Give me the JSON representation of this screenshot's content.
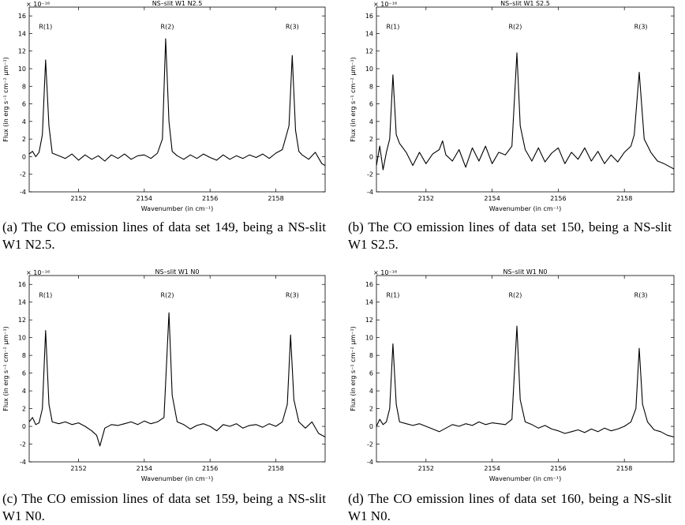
{
  "chart_data": [
    {
      "type": "line",
      "title": "NS–slit W1 N2.5",
      "xlabel": "Wavenumber (in cm⁻¹)",
      "ylabel": "Flux (in erg s⁻¹ cm⁻² μm⁻¹)",
      "exponent": "× 10⁻¹⁶",
      "xlim": [
        2150.5,
        2159.5
      ],
      "ylim": [
        -4,
        17
      ],
      "xticks": [
        2152,
        2154,
        2156,
        2158
      ],
      "yticks": [
        -4,
        -2,
        0,
        2,
        4,
        6,
        8,
        10,
        12,
        14,
        16
      ],
      "annotations": [
        {
          "text": "R(1)",
          "x": 2151.0,
          "y": 14.8
        },
        {
          "text": "R(2)",
          "x": 2154.7,
          "y": 14.8
        },
        {
          "text": "R(3)",
          "x": 2158.5,
          "y": 14.8
        }
      ],
      "series": [
        {
          "x": [
            2150.5,
            2150.6,
            2150.7,
            2150.8,
            2150.9,
            2151.0,
            2151.1,
            2151.2,
            2151.4,
            2151.6,
            2151.8,
            2152.0,
            2152.2,
            2152.4,
            2152.6,
            2152.8,
            2153.0,
            2153.2,
            2153.4,
            2153.6,
            2153.8,
            2154.0,
            2154.2,
            2154.4,
            2154.55,
            2154.65,
            2154.75,
            2154.85,
            2155.0,
            2155.2,
            2155.4,
            2155.6,
            2155.8,
            2156.0,
            2156.2,
            2156.4,
            2156.6,
            2156.8,
            2157.0,
            2157.2,
            2157.4,
            2157.6,
            2157.8,
            2158.0,
            2158.2,
            2158.4,
            2158.5,
            2158.6,
            2158.7,
            2158.8,
            2159.0,
            2159.2,
            2159.4,
            2159.5
          ],
          "y": [
            0.3,
            0.6,
            0.0,
            0.5,
            2.5,
            11.0,
            3.5,
            0.4,
            0.1,
            -0.2,
            0.3,
            -0.4,
            0.2,
            -0.3,
            0.1,
            -0.5,
            0.2,
            -0.2,
            0.3,
            -0.3,
            0.1,
            0.2,
            -0.2,
            0.4,
            2.0,
            13.4,
            4.0,
            0.6,
            0.1,
            -0.3,
            0.2,
            -0.2,
            0.3,
            -0.1,
            -0.4,
            0.2,
            -0.3,
            0.1,
            -0.2,
            0.2,
            -0.1,
            0.3,
            -0.2,
            0.4,
            0.8,
            3.5,
            11.5,
            3.0,
            0.6,
            0.2,
            -0.3,
            0.5,
            -0.8,
            -1.0
          ]
        }
      ]
    },
    {
      "type": "line",
      "title": "NS–slit W1 S2.5",
      "xlabel": "Wavenumber (in cm⁻¹)",
      "ylabel": "Flux (in erg s⁻¹ cm⁻² μm⁻¹)",
      "exponent": "× 10⁻¹⁶",
      "xlim": [
        2150.5,
        2159.5
      ],
      "ylim": [
        -4,
        17
      ],
      "xticks": [
        2152,
        2154,
        2156,
        2158
      ],
      "yticks": [
        -4,
        -2,
        0,
        2,
        4,
        6,
        8,
        10,
        12,
        14,
        16
      ],
      "annotations": [
        {
          "text": "R(1)",
          "x": 2151.0,
          "y": 14.8
        },
        {
          "text": "R(2)",
          "x": 2154.7,
          "y": 14.8
        },
        {
          "text": "R(3)",
          "x": 2158.5,
          "y": 14.8
        }
      ],
      "series": [
        {
          "x": [
            2150.5,
            2150.6,
            2150.7,
            2150.8,
            2150.9,
            2151.0,
            2151.1,
            2151.2,
            2151.4,
            2151.6,
            2151.8,
            2152.0,
            2152.2,
            2152.4,
            2152.5,
            2152.6,
            2152.8,
            2153.0,
            2153.2,
            2153.4,
            2153.6,
            2153.8,
            2154.0,
            2154.2,
            2154.4,
            2154.6,
            2154.75,
            2154.85,
            2155.0,
            2155.2,
            2155.4,
            2155.6,
            2155.8,
            2156.0,
            2156.2,
            2156.4,
            2156.6,
            2156.8,
            2157.0,
            2157.2,
            2157.4,
            2157.6,
            2157.8,
            2158.0,
            2158.2,
            2158.3,
            2158.45,
            2158.6,
            2158.8,
            2159.0,
            2159.2,
            2159.4,
            2159.5
          ],
          "y": [
            -1.0,
            1.2,
            -1.5,
            0.5,
            2.0,
            9.3,
            2.5,
            1.5,
            0.5,
            -1.0,
            0.5,
            -0.8,
            0.3,
            0.8,
            1.8,
            0.2,
            -0.5,
            0.8,
            -1.2,
            1.0,
            -0.5,
            1.2,
            -0.8,
            0.5,
            0.2,
            1.2,
            11.8,
            3.5,
            0.8,
            -0.5,
            1.0,
            -0.6,
            0.4,
            1.0,
            -0.8,
            0.5,
            -0.3,
            1.0,
            -0.5,
            0.6,
            -0.8,
            0.2,
            -0.6,
            0.5,
            1.2,
            2.5,
            9.6,
            2.0,
            0.5,
            -0.5,
            -0.8,
            -1.2,
            -1.4
          ]
        }
      ]
    },
    {
      "type": "line",
      "title": "NS–slit W1 N0",
      "xlabel": "Wavenumber (in cm⁻¹)",
      "ylabel": "Flux (in erg s⁻¹ cm⁻² μm⁻¹)",
      "exponent": "× 10⁻¹⁶",
      "xlim": [
        2150.5,
        2159.5
      ],
      "ylim": [
        -4,
        17
      ],
      "xticks": [
        2152,
        2154,
        2156,
        2158
      ],
      "yticks": [
        -4,
        -2,
        0,
        2,
        4,
        6,
        8,
        10,
        12,
        14,
        16
      ],
      "annotations": [
        {
          "text": "R(1)",
          "x": 2151.0,
          "y": 14.8
        },
        {
          "text": "R(2)",
          "x": 2154.7,
          "y": 14.8
        },
        {
          "text": "R(3)",
          "x": 2158.5,
          "y": 14.8
        }
      ],
      "series": [
        {
          "x": [
            2150.5,
            2150.6,
            2150.7,
            2150.8,
            2150.9,
            2151.0,
            2151.1,
            2151.2,
            2151.4,
            2151.6,
            2151.8,
            2152.0,
            2152.2,
            2152.4,
            2152.55,
            2152.65,
            2152.8,
            2153.0,
            2153.2,
            2153.4,
            2153.6,
            2153.8,
            2154.0,
            2154.2,
            2154.4,
            2154.6,
            2154.75,
            2154.85,
            2155.0,
            2155.2,
            2155.4,
            2155.6,
            2155.8,
            2156.0,
            2156.2,
            2156.4,
            2156.6,
            2156.8,
            2157.0,
            2157.2,
            2157.4,
            2157.6,
            2157.8,
            2158.0,
            2158.2,
            2158.35,
            2158.45,
            2158.55,
            2158.7,
            2158.9,
            2159.1,
            2159.3,
            2159.5
          ],
          "y": [
            0.5,
            1.0,
            0.2,
            0.4,
            2.0,
            10.8,
            2.5,
            0.5,
            0.3,
            0.5,
            0.2,
            0.4,
            0.0,
            -0.5,
            -1.0,
            -2.2,
            -0.2,
            0.2,
            0.1,
            0.3,
            0.5,
            0.2,
            0.6,
            0.3,
            0.5,
            1.0,
            12.8,
            3.5,
            0.5,
            0.2,
            -0.3,
            0.1,
            0.3,
            0.0,
            -0.5,
            0.2,
            0.0,
            0.3,
            -0.2,
            0.1,
            0.2,
            -0.1,
            0.3,
            0.0,
            0.5,
            2.5,
            10.3,
            3.0,
            0.5,
            -0.2,
            0.5,
            -0.8,
            -1.2
          ]
        }
      ]
    },
    {
      "type": "line",
      "title": "NS–slit W1 N0",
      "xlabel": "Wavenumber (in cm⁻¹)",
      "ylabel": "Flux (in erg s⁻¹ cm⁻² μm⁻¹)",
      "exponent": "× 10⁻¹⁶",
      "xlim": [
        2150.5,
        2159.5
      ],
      "ylim": [
        -4,
        17
      ],
      "xticks": [
        2152,
        2154,
        2156,
        2158
      ],
      "yticks": [
        -4,
        -2,
        0,
        2,
        4,
        6,
        8,
        10,
        12,
        14,
        16
      ],
      "annotations": [
        {
          "text": "R(1)",
          "x": 2151.0,
          "y": 14.8
        },
        {
          "text": "R(2)",
          "x": 2154.7,
          "y": 14.8
        },
        {
          "text": "R(3)",
          "x": 2158.5,
          "y": 14.8
        }
      ],
      "series": [
        {
          "x": [
            2150.5,
            2150.6,
            2150.7,
            2150.8,
            2150.9,
            2151.0,
            2151.1,
            2151.2,
            2151.4,
            2151.6,
            2151.8,
            2152.0,
            2152.2,
            2152.4,
            2152.6,
            2152.8,
            2153.0,
            2153.2,
            2153.4,
            2153.6,
            2153.8,
            2154.0,
            2154.2,
            2154.4,
            2154.6,
            2154.75,
            2154.85,
            2155.0,
            2155.2,
            2155.4,
            2155.6,
            2155.8,
            2156.0,
            2156.2,
            2156.4,
            2156.6,
            2156.8,
            2157.0,
            2157.2,
            2157.4,
            2157.6,
            2157.8,
            2158.0,
            2158.2,
            2158.35,
            2158.45,
            2158.55,
            2158.7,
            2158.9,
            2159.1,
            2159.3,
            2159.5
          ],
          "y": [
            0.0,
            0.8,
            0.2,
            0.5,
            2.0,
            9.3,
            2.5,
            0.5,
            0.3,
            0.1,
            0.3,
            0.0,
            -0.3,
            -0.6,
            -0.2,
            0.2,
            0.0,
            0.3,
            0.1,
            0.5,
            0.2,
            0.4,
            0.3,
            0.2,
            0.8,
            11.3,
            3.0,
            0.5,
            0.2,
            -0.2,
            0.1,
            -0.3,
            -0.5,
            -0.8,
            -0.6,
            -0.4,
            -0.7,
            -0.3,
            -0.6,
            -0.2,
            -0.5,
            -0.3,
            0.0,
            0.5,
            2.0,
            8.8,
            2.5,
            0.5,
            -0.4,
            -0.6,
            -1.0,
            -1.2
          ]
        }
      ]
    }
  ],
  "captions": [
    "(a) The CO emission lines of data set 149, being a NS-slit W1 N2.5.",
    "(b) The CO emission lines of data set 150, being a NS-slit W1 S2.5.",
    "(c) The CO emission lines of data set 159, being a NS-slit W1 N0.",
    "(d) The CO emission lines of data set 160, being a NS-slit W1 N0."
  ]
}
